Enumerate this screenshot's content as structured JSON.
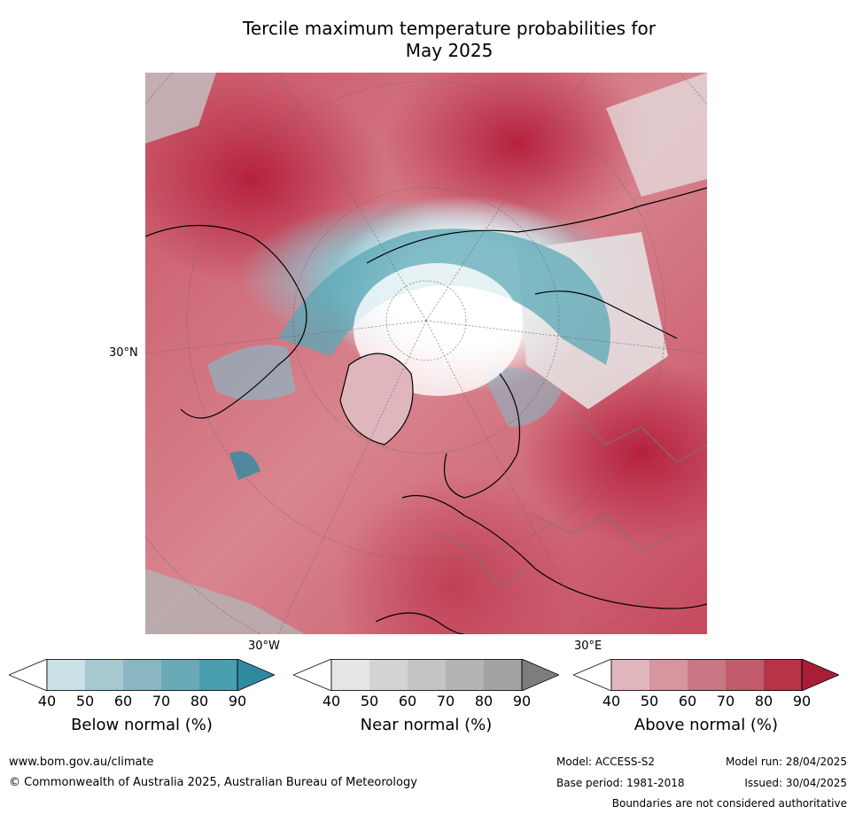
{
  "title_line1": "Tercile maximum temperature probabilities for",
  "title_line2": "May 2025",
  "map": {
    "lat_label": "30°N",
    "lon_label_left": "30°W",
    "lon_label_right": "30°E",
    "colors": {
      "below": [
        "#ffffff",
        "#c9e1e7",
        "#a6c8cf",
        "#8ab6c2",
        "#6aaab6",
        "#4a9fae",
        "#2f8aa0"
      ],
      "near": [
        "#ffffff",
        "#e6e6e6",
        "#d3d3d3",
        "#c4c4c4",
        "#b4b4b4",
        "#a3a3a3",
        "#7d7d7d"
      ],
      "above": [
        "#ffffff",
        "#e0b6bd",
        "#d6959f",
        "#c97684",
        "#c15a6a",
        "#b73447",
        "#a91d38"
      ]
    }
  },
  "colorbars": [
    {
      "label": "Below normal (%)",
      "ticks": [
        "40",
        "50",
        "60",
        "70",
        "80",
        "90"
      ]
    },
    {
      "label": "Near normal (%)",
      "ticks": [
        "40",
        "50",
        "60",
        "70",
        "80",
        "90"
      ]
    },
    {
      "label": "Above normal (%)",
      "ticks": [
        "40",
        "50",
        "60",
        "70",
        "80",
        "90"
      ]
    }
  ],
  "footer": {
    "website": "www.bom.gov.au/climate",
    "copyright": "© Commonwealth of Australia 2025, Australian Bureau of Meteorology",
    "model": "Model: ACCESS-S2",
    "base_period": "Base period: 1981-2018",
    "model_run": "Model run: 28/04/2025",
    "issued": "Issued: 30/04/2025",
    "disclaimer": "Boundaries are not considered authoritative"
  }
}
